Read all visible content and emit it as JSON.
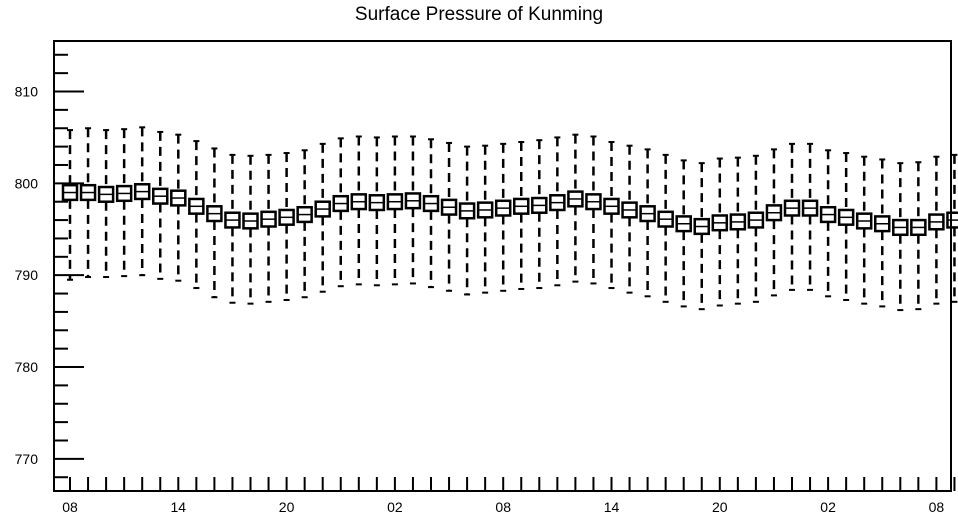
{
  "chart_data": {
    "type": "boxplot",
    "title": "Surface Pressure of Kunming",
    "xlabel": "",
    "ylabel": "",
    "ylim": [
      766.5,
      815.5
    ],
    "y_ticks": [
      770,
      780,
      790,
      800,
      810
    ],
    "x_tick_labels": [
      "08",
      "14",
      "20",
      "02",
      "08",
      "14",
      "20",
      "02",
      "08"
    ],
    "x_tick_label_indices": [
      0,
      6,
      12,
      18,
      24,
      30,
      36,
      42,
      48
    ],
    "grid": false,
    "series": [
      {
        "median": [
          799.0,
          799.0,
          798.8,
          798.9,
          799.1,
          798.6,
          798.4,
          797.5,
          796.7,
          796.0,
          795.9,
          796.1,
          796.3,
          796.6,
          797.2,
          797.8,
          798.0,
          797.9,
          798.0,
          798.1,
          797.8,
          797.4,
          797.0,
          797.1,
          797.3,
          797.5,
          797.6,
          797.9,
          798.3,
          798.0,
          797.5,
          797.1,
          796.7,
          796.1,
          795.6,
          795.3,
          795.7,
          795.8,
          796.0,
          796.8,
          797.3,
          797.3,
          796.6,
          796.3,
          795.9,
          795.6,
          795.2,
          795.2,
          795.8,
          796.0
        ],
        "box_low": [
          798.2,
          798.2,
          798.0,
          798.1,
          798.3,
          797.8,
          797.6,
          796.7,
          795.9,
          795.2,
          795.1,
          795.3,
          795.5,
          795.8,
          796.4,
          797.0,
          797.2,
          797.1,
          797.2,
          797.3,
          797.0,
          796.6,
          796.2,
          796.3,
          796.5,
          796.7,
          796.8,
          797.1,
          797.5,
          797.2,
          796.7,
          796.3,
          795.9,
          795.3,
          794.8,
          794.5,
          794.9,
          795.0,
          795.2,
          796.0,
          796.5,
          796.5,
          795.8,
          795.5,
          795.1,
          794.8,
          794.4,
          794.4,
          795.0,
          795.2
        ],
        "box_high": [
          799.8,
          799.8,
          799.6,
          799.7,
          799.9,
          799.4,
          799.2,
          798.3,
          797.5,
          796.8,
          796.7,
          796.9,
          797.1,
          797.4,
          798.0,
          798.6,
          798.8,
          798.7,
          798.8,
          798.9,
          798.6,
          798.2,
          797.8,
          797.9,
          798.1,
          798.3,
          798.4,
          798.7,
          799.1,
          798.8,
          798.3,
          797.9,
          797.5,
          796.9,
          796.4,
          796.1,
          796.5,
          796.6,
          796.8,
          797.6,
          798.1,
          798.1,
          797.4,
          797.1,
          796.7,
          796.4,
          796.0,
          796.0,
          796.6,
          796.8
        ],
        "whisker_low": [
          789.5,
          789.8,
          789.8,
          789.9,
          790.0,
          789.6,
          789.4,
          788.6,
          787.6,
          787.0,
          786.9,
          787.1,
          787.3,
          787.6,
          788.2,
          788.8,
          789.0,
          788.9,
          789.0,
          789.1,
          788.7,
          788.3,
          787.9,
          788.1,
          788.3,
          788.5,
          788.6,
          788.9,
          789.3,
          789.1,
          788.6,
          788.1,
          787.7,
          787.1,
          786.6,
          786.3,
          786.7,
          786.9,
          787.1,
          787.8,
          788.4,
          788.4,
          787.7,
          787.3,
          786.9,
          786.6,
          786.2,
          786.3,
          786.9,
          787.1
        ],
        "whisker_high": [
          805.8,
          806.0,
          805.8,
          805.9,
          806.1,
          805.6,
          805.3,
          804.6,
          803.8,
          803.1,
          803.0,
          803.1,
          803.3,
          803.6,
          804.3,
          804.9,
          805.1,
          805.0,
          805.1,
          805.1,
          804.8,
          804.4,
          804.0,
          804.1,
          804.3,
          804.5,
          804.7,
          805.0,
          805.3,
          805.1,
          804.5,
          804.1,
          803.7,
          803.1,
          802.5,
          802.2,
          802.7,
          802.8,
          803.0,
          803.7,
          804.3,
          804.3,
          803.6,
          803.3,
          802.9,
          802.6,
          802.2,
          802.3,
          802.9,
          803.1
        ]
      }
    ]
  }
}
